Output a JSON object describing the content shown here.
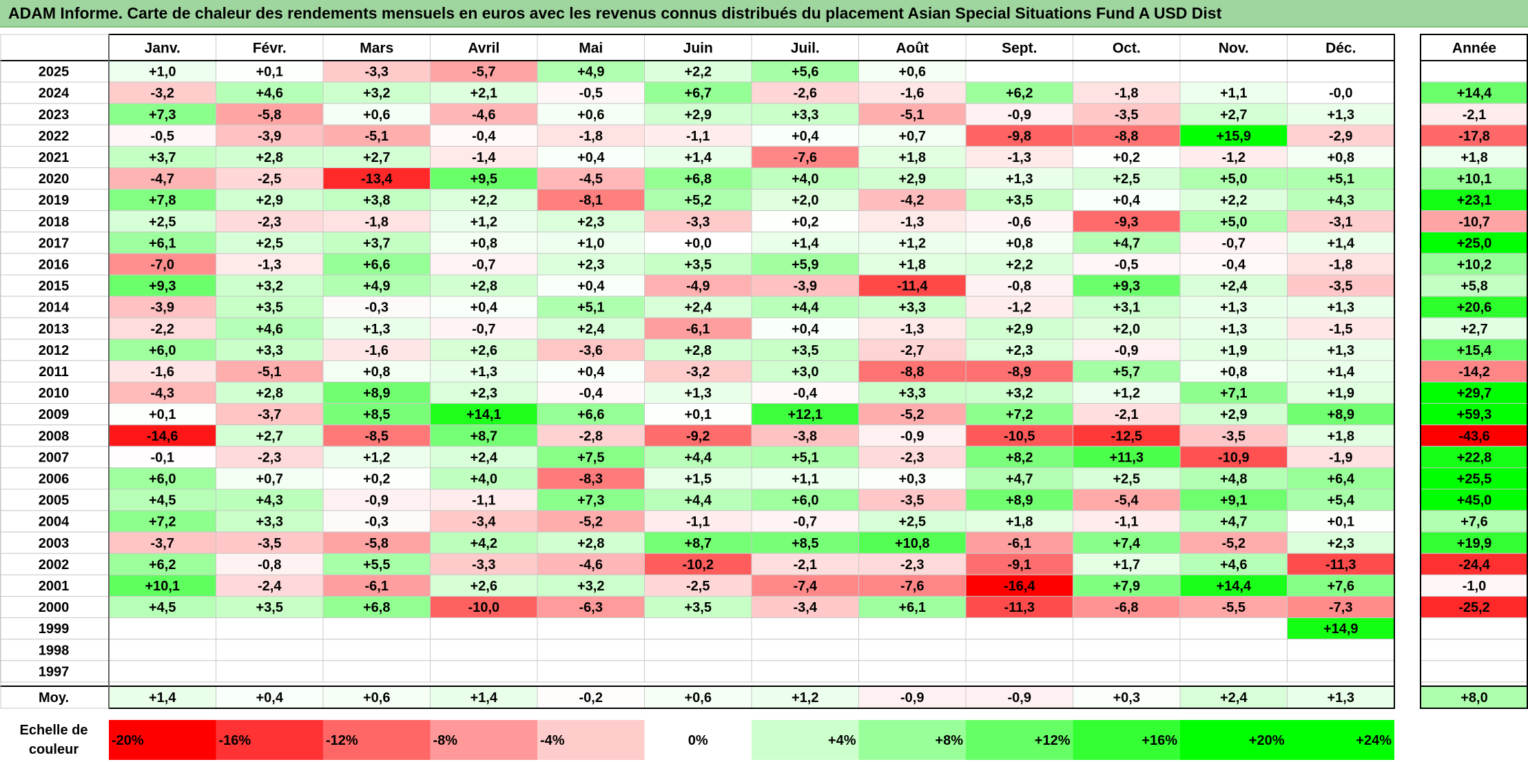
{
  "title": "ADAM Informe. Carte de chaleur des rendements mensuels en euros avec les revenus connus distribués du placement Asian Special Situations Fund A USD Dist",
  "chart_data": {
    "type": "heatmap",
    "months": [
      "Janv.",
      "Févr.",
      "Mars",
      "Avril",
      "Mai",
      "Juin",
      "Juil.",
      "Août",
      "Sept.",
      "Oct.",
      "Nov.",
      "Déc."
    ],
    "year_header": "Année",
    "rows": [
      {
        "year": "2025",
        "values": [
          "+1,0",
          "+0,1",
          "-3,3",
          "-5,7",
          "+4,9",
          "+2,2",
          "+5,6",
          "+0,6",
          "",
          "",
          "",
          ""
        ],
        "annual": ""
      },
      {
        "year": "2024",
        "values": [
          "-3,2",
          "+4,6",
          "+3,2",
          "+2,1",
          "-0,5",
          "+6,7",
          "-2,6",
          "-1,6",
          "+6,2",
          "-1,8",
          "+1,1",
          "-0,0"
        ],
        "annual": "+14,4"
      },
      {
        "year": "2023",
        "values": [
          "+7,3",
          "-5,8",
          "+0,6",
          "-4,6",
          "+0,6",
          "+2,9",
          "+3,3",
          "-5,1",
          "-0,9",
          "-3,5",
          "+2,7",
          "+1,3"
        ],
        "annual": "-2,1"
      },
      {
        "year": "2022",
        "values": [
          "-0,5",
          "-3,9",
          "-5,1",
          "-0,4",
          "-1,8",
          "-1,1",
          "+0,4",
          "+0,7",
          "-9,8",
          "-8,8",
          "+15,9",
          "-2,9"
        ],
        "annual": "-17,8"
      },
      {
        "year": "2021",
        "values": [
          "+3,7",
          "+2,8",
          "+2,7",
          "-1,4",
          "+0,4",
          "+1,4",
          "-7,6",
          "+1,8",
          "-1,3",
          "+0,2",
          "-1,2",
          "+0,8"
        ],
        "annual": "+1,8"
      },
      {
        "year": "2020",
        "values": [
          "-4,7",
          "-2,5",
          "-13,4",
          "+9,5",
          "-4,5",
          "+6,8",
          "+4,0",
          "+2,9",
          "+1,3",
          "+2,5",
          "+5,0",
          "+5,1"
        ],
        "annual": "+10,1"
      },
      {
        "year": "2019",
        "values": [
          "+7,8",
          "+2,9",
          "+3,8",
          "+2,2",
          "-8,1",
          "+5,2",
          "+2,0",
          "-4,2",
          "+3,5",
          "+0,4",
          "+2,2",
          "+4,3"
        ],
        "annual": "+23,1"
      },
      {
        "year": "2018",
        "values": [
          "+2,5",
          "-2,3",
          "-1,8",
          "+1,2",
          "+2,3",
          "-3,3",
          "+0,2",
          "-1,3",
          "-0,6",
          "-9,3",
          "+5,0",
          "-3,1"
        ],
        "annual": "-10,7"
      },
      {
        "year": "2017",
        "values": [
          "+6,1",
          "+2,5",
          "+3,7",
          "+0,8",
          "+1,0",
          "+0,0",
          "+1,4",
          "+1,2",
          "+0,8",
          "+4,7",
          "-0,7",
          "+1,4"
        ],
        "annual": "+25,0"
      },
      {
        "year": "2016",
        "values": [
          "-7,0",
          "-1,3",
          "+6,6",
          "-0,7",
          "+2,3",
          "+3,5",
          "+5,9",
          "+1,8",
          "+2,2",
          "-0,5",
          "-0,4",
          "-1,8"
        ],
        "annual": "+10,2"
      },
      {
        "year": "2015",
        "values": [
          "+9,3",
          "+3,2",
          "+4,9",
          "+2,8",
          "+0,4",
          "-4,9",
          "-3,9",
          "-11,4",
          "-0,8",
          "+9,3",
          "+2,4",
          "-3,5"
        ],
        "annual": "+5,8"
      },
      {
        "year": "2014",
        "values": [
          "-3,9",
          "+3,5",
          "-0,3",
          "+0,4",
          "+5,1",
          "+2,4",
          "+4,4",
          "+3,3",
          "-1,2",
          "+3,1",
          "+1,3",
          "+1,3"
        ],
        "annual": "+20,6"
      },
      {
        "year": "2013",
        "values": [
          "-2,2",
          "+4,6",
          "+1,3",
          "-0,7",
          "+2,4",
          "-6,1",
          "+0,4",
          "-1,3",
          "+2,9",
          "+2,0",
          "+1,3",
          "-1,5"
        ],
        "annual": "+2,7"
      },
      {
        "year": "2012",
        "values": [
          "+6,0",
          "+3,3",
          "-1,6",
          "+2,6",
          "-3,6",
          "+2,8",
          "+3,5",
          "-2,7",
          "+2,3",
          "-0,9",
          "+1,9",
          "+1,3"
        ],
        "annual": "+15,4"
      },
      {
        "year": "2011",
        "values": [
          "-1,6",
          "-5,1",
          "+0,8",
          "+1,3",
          "+0,4",
          "-3,2",
          "+3,0",
          "-8,8",
          "-8,9",
          "+5,7",
          "+0,8",
          "+1,4"
        ],
        "annual": "-14,2"
      },
      {
        "year": "2010",
        "values": [
          "-4,3",
          "+2,8",
          "+8,9",
          "+2,3",
          "-0,4",
          "+1,3",
          "-0,4",
          "+3,3",
          "+3,2",
          "+1,2",
          "+7,1",
          "+1,9"
        ],
        "annual": "+29,7"
      },
      {
        "year": "2009",
        "values": [
          "+0,1",
          "-3,7",
          "+8,5",
          "+14,1",
          "+6,6",
          "+0,1",
          "+12,1",
          "-5,2",
          "+7,2",
          "-2,1",
          "+2,9",
          "+8,9"
        ],
        "annual": "+59,3"
      },
      {
        "year": "2008",
        "values": [
          "-14,6",
          "+2,7",
          "-8,5",
          "+8,7",
          "-2,8",
          "-9,2",
          "-3,8",
          "-0,9",
          "-10,5",
          "-12,5",
          "-3,5",
          "+1,8"
        ],
        "annual": "-43,6"
      },
      {
        "year": "2007",
        "values": [
          "-0,1",
          "-2,3",
          "+1,2",
          "+2,4",
          "+7,5",
          "+4,4",
          "+5,1",
          "-2,3",
          "+8,2",
          "+11,3",
          "-10,9",
          "-1,9"
        ],
        "annual": "+22,8"
      },
      {
        "year": "2006",
        "values": [
          "+6,0",
          "+0,7",
          "+0,2",
          "+4,0",
          "-8,3",
          "+1,5",
          "+1,1",
          "+0,3",
          "+4,7",
          "+2,5",
          "+4,8",
          "+6,4"
        ],
        "annual": "+25,5"
      },
      {
        "year": "2005",
        "values": [
          "+4,5",
          "+4,3",
          "-0,9",
          "-1,1",
          "+7,3",
          "+4,4",
          "+6,0",
          "-3,5",
          "+8,9",
          "-5,4",
          "+9,1",
          "+5,4"
        ],
        "annual": "+45,0"
      },
      {
        "year": "2004",
        "values": [
          "+7,2",
          "+3,3",
          "-0,3",
          "-3,4",
          "-5,2",
          "-1,1",
          "-0,7",
          "+2,5",
          "+1,8",
          "-1,1",
          "+4,7",
          "+0,1"
        ],
        "annual": "+7,6"
      },
      {
        "year": "2003",
        "values": [
          "-3,7",
          "-3,5",
          "-5,8",
          "+4,2",
          "+2,8",
          "+8,7",
          "+8,5",
          "+10,8",
          "-6,1",
          "+7,4",
          "-5,2",
          "+2,3"
        ],
        "annual": "+19,9"
      },
      {
        "year": "2002",
        "values": [
          "+6,2",
          "-0,8",
          "+5,5",
          "-3,3",
          "-4,6",
          "-10,2",
          "-2,1",
          "-2,3",
          "-9,1",
          "+1,7",
          "+4,6",
          "-11,3"
        ],
        "annual": "-24,4"
      },
      {
        "year": "2001",
        "values": [
          "+10,1",
          "-2,4",
          "-6,1",
          "+2,6",
          "+3,2",
          "-2,5",
          "-7,4",
          "-7,6",
          "-16,4",
          "+7,9",
          "+14,4",
          "+7,6"
        ],
        "annual": "-1,0"
      },
      {
        "year": "2000",
        "values": [
          "+4,5",
          "+3,5",
          "+6,8",
          "-10,0",
          "-6,3",
          "+3,5",
          "-3,4",
          "+6,1",
          "-11,3",
          "-6,8",
          "-5,5",
          "-7,3"
        ],
        "annual": "-25,2"
      },
      {
        "year": "1999",
        "values": [
          "",
          "",
          "",
          "",
          "",
          "",
          "",
          "",
          "",
          "",
          "",
          "+14,9"
        ],
        "annual": ""
      },
      {
        "year": "1998",
        "values": [
          "",
          "",
          "",
          "",
          "",
          "",
          "",
          "",
          "",
          "",
          "",
          ""
        ],
        "annual": ""
      },
      {
        "year": "1997",
        "values": [
          "",
          "",
          "",
          "",
          "",
          "",
          "",
          "",
          "",
          "",
          "",
          ""
        ],
        "annual": ""
      }
    ],
    "average": {
      "label": "Moy.",
      "values": [
        "+1,4",
        "+0,4",
        "+0,6",
        "+1,4",
        "-0,2",
        "+0,6",
        "+1,2",
        "-0,9",
        "-0,9",
        "+0,3",
        "+2,4",
        "+1,3"
      ],
      "annual": "+8,0"
    },
    "scale": {
      "label_line1": "Echelle de",
      "label_line2": "couleur",
      "items": [
        "-20%",
        "-16%",
        "-12%",
        "-8%",
        "-4%",
        "0%",
        "+4%",
        "+8%",
        "+12%",
        "+16%",
        "+20%",
        "+24%"
      ],
      "colors": [
        "#ff0000",
        "#ff3333",
        "#ff6666",
        "#ff9999",
        "#ffcccc",
        "#ffffff",
        "#ccffcc",
        "#99ff99",
        "#66ff66",
        "#33ff33",
        "#00ff00",
        "#00ff00"
      ]
    },
    "colors": {
      "negative": "#ff0000",
      "positive": "#00ff00",
      "neutral": "#ffffff"
    }
  }
}
